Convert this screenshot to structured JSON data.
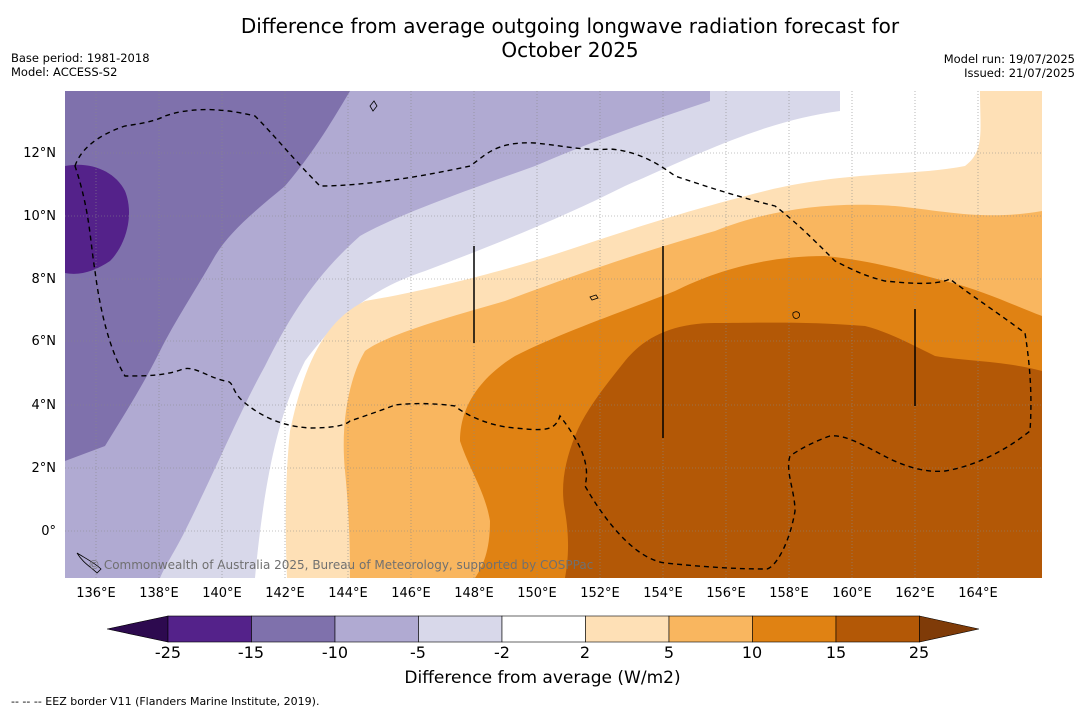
{
  "title_line1": "Difference from average outgoing longwave radiation forecast for",
  "title_line2": "October 2025",
  "base_period": "Base period: 1981-2018",
  "model": "Model: ACCESS-S2",
  "model_run": "Model run: 19/07/2025",
  "issued": "Issued: 21/07/2025",
  "lat_labels": [
    "12°N",
    "10°N",
    "8°N",
    "6°N",
    "4°N",
    "2°N",
    "0°"
  ],
  "lon_labels": [
    "136°E",
    "138°E",
    "140°E",
    "142°E",
    "144°E",
    "146°E",
    "148°E",
    "150°E",
    "152°E",
    "154°E",
    "156°E",
    "158°E",
    "160°E",
    "162°E",
    "164°E"
  ],
  "copyright": "© Commonwealth of Australia 2025, Bureau of Meteorology, supported by COSPPac",
  "colorbar": {
    "ticks": [
      "-25",
      "-15",
      "-10",
      "-5",
      "-2",
      "2",
      "5",
      "10",
      "15",
      "25"
    ],
    "colors": [
      "#2d0a4f",
      "#54228a",
      "#7f71ac",
      "#b0aad2",
      "#d8d8ea",
      "#ffffff",
      "#fee0b6",
      "#f9b65f",
      "#e08213",
      "#b35806",
      "#7f3b08"
    ],
    "label": "Difference from average (W/m2)"
  },
  "legend_note": "--  --  -- EEZ border V11 (Flanders Marine Institute, 2019)."
}
